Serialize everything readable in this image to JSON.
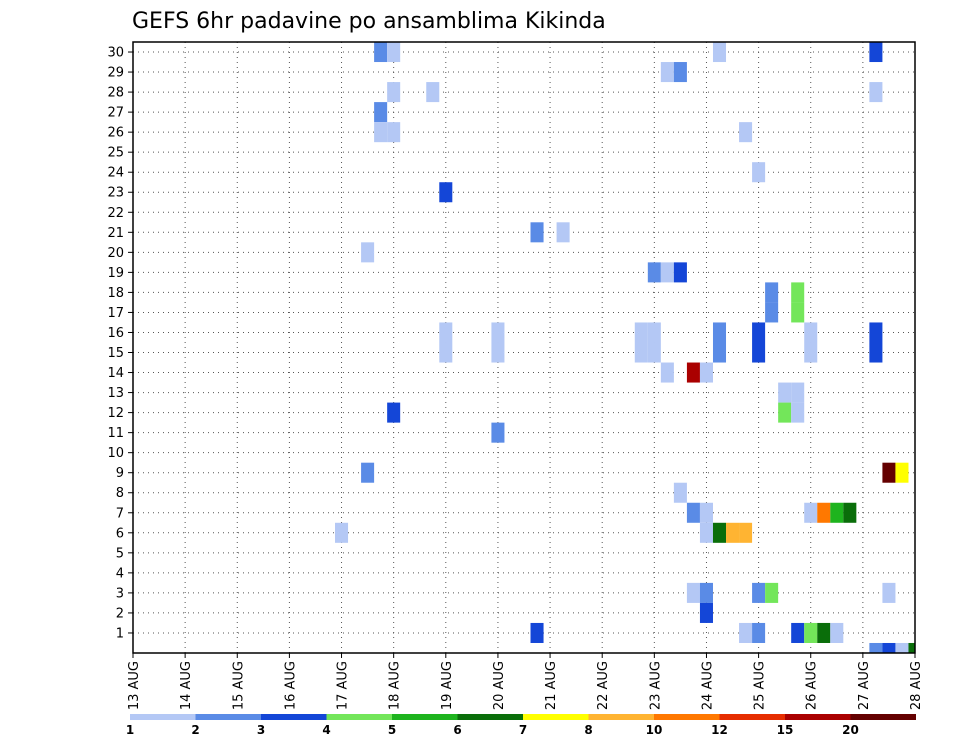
{
  "chart_data": {
    "type": "heatmap",
    "title": "GEFS 6hr padavine po ansamblima Kikinda",
    "xlabel": "",
    "ylabel": "",
    "x_tick_labels": [
      "13 AUG",
      "14 AUG",
      "15 AUG",
      "16 AUG",
      "17 AUG",
      "18 AUG",
      "19 AUG",
      "20 AUG",
      "21 AUG",
      "22 AUG",
      "23 AUG",
      "24 AUG",
      "25 AUG",
      "26 AUG",
      "27 AUG",
      "28 AUG"
    ],
    "y_tick_labels": [
      "1",
      "2",
      "3",
      "4",
      "5",
      "6",
      "7",
      "8",
      "9",
      "10",
      "11",
      "12",
      "13",
      "14",
      "15",
      "16",
      "17",
      "18",
      "19",
      "20",
      "21",
      "22",
      "23",
      "24",
      "25",
      "26",
      "27",
      "28",
      "29",
      "30"
    ],
    "xlim_days": [
      13,
      28
    ],
    "ylim": [
      0,
      30
    ],
    "time_step_hours": 6,
    "grid": "dotted",
    "colorbar": {
      "placement": "bottom",
      "labels": [
        "1",
        "2",
        "3",
        "4",
        "5",
        "6",
        "7",
        "8",
        "10",
        "12",
        "15",
        "20"
      ],
      "colors": [
        "#b4c8f5",
        "#5a8be6",
        "#1446d7",
        "#73e65a",
        "#1eb41e",
        "#0a6e0a",
        "#ffff00",
        "#ffb432",
        "#ff7800",
        "#e62d00",
        "#aa0000",
        "#640000"
      ]
    },
    "cells": [
      {
        "member": 30,
        "day": 17.75,
        "color_index": 1
      },
      {
        "member": 30,
        "day": 18.0,
        "color_index": 0
      },
      {
        "member": 30,
        "day": 24.25,
        "color_index": 0
      },
      {
        "member": 30,
        "day": 27.25,
        "color_index": 2
      },
      {
        "member": 29,
        "day": 23.25,
        "color_index": 0
      },
      {
        "member": 29,
        "day": 23.5,
        "color_index": 1
      },
      {
        "member": 28,
        "day": 18.0,
        "color_index": 0
      },
      {
        "member": 28,
        "day": 18.75,
        "color_index": 0
      },
      {
        "member": 28,
        "day": 27.25,
        "color_index": 0
      },
      {
        "member": 27,
        "day": 17.75,
        "color_index": 1
      },
      {
        "member": 26,
        "day": 17.75,
        "color_index": 0
      },
      {
        "member": 26,
        "day": 18.0,
        "color_index": 0
      },
      {
        "member": 26,
        "day": 24.75,
        "color_index": 0
      },
      {
        "member": 24,
        "day": 25.0,
        "color_index": 0
      },
      {
        "member": 23,
        "day": 19.0,
        "color_index": 2
      },
      {
        "member": 21,
        "day": 20.75,
        "color_index": 1
      },
      {
        "member": 21,
        "day": 21.25,
        "color_index": 0
      },
      {
        "member": 20,
        "day": 17.5,
        "color_index": 0
      },
      {
        "member": 19,
        "day": 23.0,
        "color_index": 1
      },
      {
        "member": 19,
        "day": 23.25,
        "color_index": 0
      },
      {
        "member": 19,
        "day": 23.5,
        "color_index": 2
      },
      {
        "member": 18,
        "day": 25.25,
        "color_index": 1
      },
      {
        "member": 18,
        "day": 25.75,
        "color_index": 3
      },
      {
        "member": 17,
        "day": 25.25,
        "color_index": 1
      },
      {
        "member": 17,
        "day": 25.75,
        "color_index": 3
      },
      {
        "member": 16,
        "day": 19.0,
        "color_index": 0
      },
      {
        "member": 16,
        "day": 20.0,
        "color_index": 0
      },
      {
        "member": 16,
        "day": 22.75,
        "color_index": 0
      },
      {
        "member": 16,
        "day": 23.0,
        "color_index": 0
      },
      {
        "member": 16,
        "day": 24.25,
        "color_index": 1
      },
      {
        "member": 16,
        "day": 25.0,
        "color_index": 2
      },
      {
        "member": 16,
        "day": 26.0,
        "color_index": 0
      },
      {
        "member": 16,
        "day": 27.25,
        "color_index": 2
      },
      {
        "member": 15,
        "day": 19.0,
        "color_index": 0
      },
      {
        "member": 15,
        "day": 20.0,
        "color_index": 0
      },
      {
        "member": 15,
        "day": 22.75,
        "color_index": 0
      },
      {
        "member": 15,
        "day": 23.0,
        "color_index": 0
      },
      {
        "member": 15,
        "day": 24.25,
        "color_index": 1
      },
      {
        "member": 15,
        "day": 25.0,
        "color_index": 2
      },
      {
        "member": 15,
        "day": 26.0,
        "color_index": 0
      },
      {
        "member": 15,
        "day": 27.25,
        "color_index": 2
      },
      {
        "member": 14,
        "day": 23.25,
        "color_index": 0
      },
      {
        "member": 14,
        "day": 23.75,
        "color_index": 10
      },
      {
        "member": 14,
        "day": 24.0,
        "color_index": 0
      },
      {
        "member": 13,
        "day": 25.5,
        "color_index": 0
      },
      {
        "member": 13,
        "day": 25.75,
        "color_index": 0
      },
      {
        "member": 12,
        "day": 18.0,
        "color_index": 2
      },
      {
        "member": 12,
        "day": 25.5,
        "color_index": 3
      },
      {
        "member": 12,
        "day": 25.75,
        "color_index": 0
      },
      {
        "member": 11,
        "day": 20.0,
        "color_index": 1
      },
      {
        "member": 9,
        "day": 17.5,
        "color_index": 1
      },
      {
        "member": 9,
        "day": 27.5,
        "color_index": 11
      },
      {
        "member": 9,
        "day": 27.75,
        "color_index": 6
      },
      {
        "member": 8,
        "day": 23.5,
        "color_index": 0
      },
      {
        "member": 7,
        "day": 23.75,
        "color_index": 1
      },
      {
        "member": 7,
        "day": 24.0,
        "color_index": 0
      },
      {
        "member": 7,
        "day": 26.0,
        "color_index": 0
      },
      {
        "member": 7,
        "day": 26.25,
        "color_index": 8
      },
      {
        "member": 7,
        "day": 26.5,
        "color_index": 4
      },
      {
        "member": 7,
        "day": 26.75,
        "color_index": 5
      },
      {
        "member": 6,
        "day": 17.0,
        "color_index": 0
      },
      {
        "member": 6,
        "day": 24.0,
        "color_index": 0
      },
      {
        "member": 6,
        "day": 24.25,
        "color_index": 5
      },
      {
        "member": 6,
        "day": 24.5,
        "color_index": 7
      },
      {
        "member": 6,
        "day": 24.75,
        "color_index": 7
      },
      {
        "member": 3,
        "day": 23.75,
        "color_index": 0
      },
      {
        "member": 3,
        "day": 24.0,
        "color_index": 1
      },
      {
        "member": 3,
        "day": 25.0,
        "color_index": 1
      },
      {
        "member": 3,
        "day": 25.25,
        "color_index": 3
      },
      {
        "member": 3,
        "day": 27.5,
        "color_index": 0
      },
      {
        "member": 2,
        "day": 24.0,
        "color_index": 2
      },
      {
        "member": 1,
        "day": 20.75,
        "color_index": 2
      },
      {
        "member": 1,
        "day": 24.75,
        "color_index": 0
      },
      {
        "member": 1,
        "day": 25.0,
        "color_index": 1
      },
      {
        "member": 1,
        "day": 25.75,
        "color_index": 2
      },
      {
        "member": 1,
        "day": 26.0,
        "color_index": 3
      },
      {
        "member": 1,
        "day": 26.25,
        "color_index": 5
      },
      {
        "member": 1,
        "day": 26.5,
        "color_index": 0
      },
      {
        "member": 0,
        "day": 27.25,
        "color_index": 1
      },
      {
        "member": 0,
        "day": 27.5,
        "color_index": 2
      },
      {
        "member": 0,
        "day": 27.75,
        "color_index": 0
      },
      {
        "member": 0,
        "day": 28.0,
        "color_index": 5
      }
    ]
  }
}
